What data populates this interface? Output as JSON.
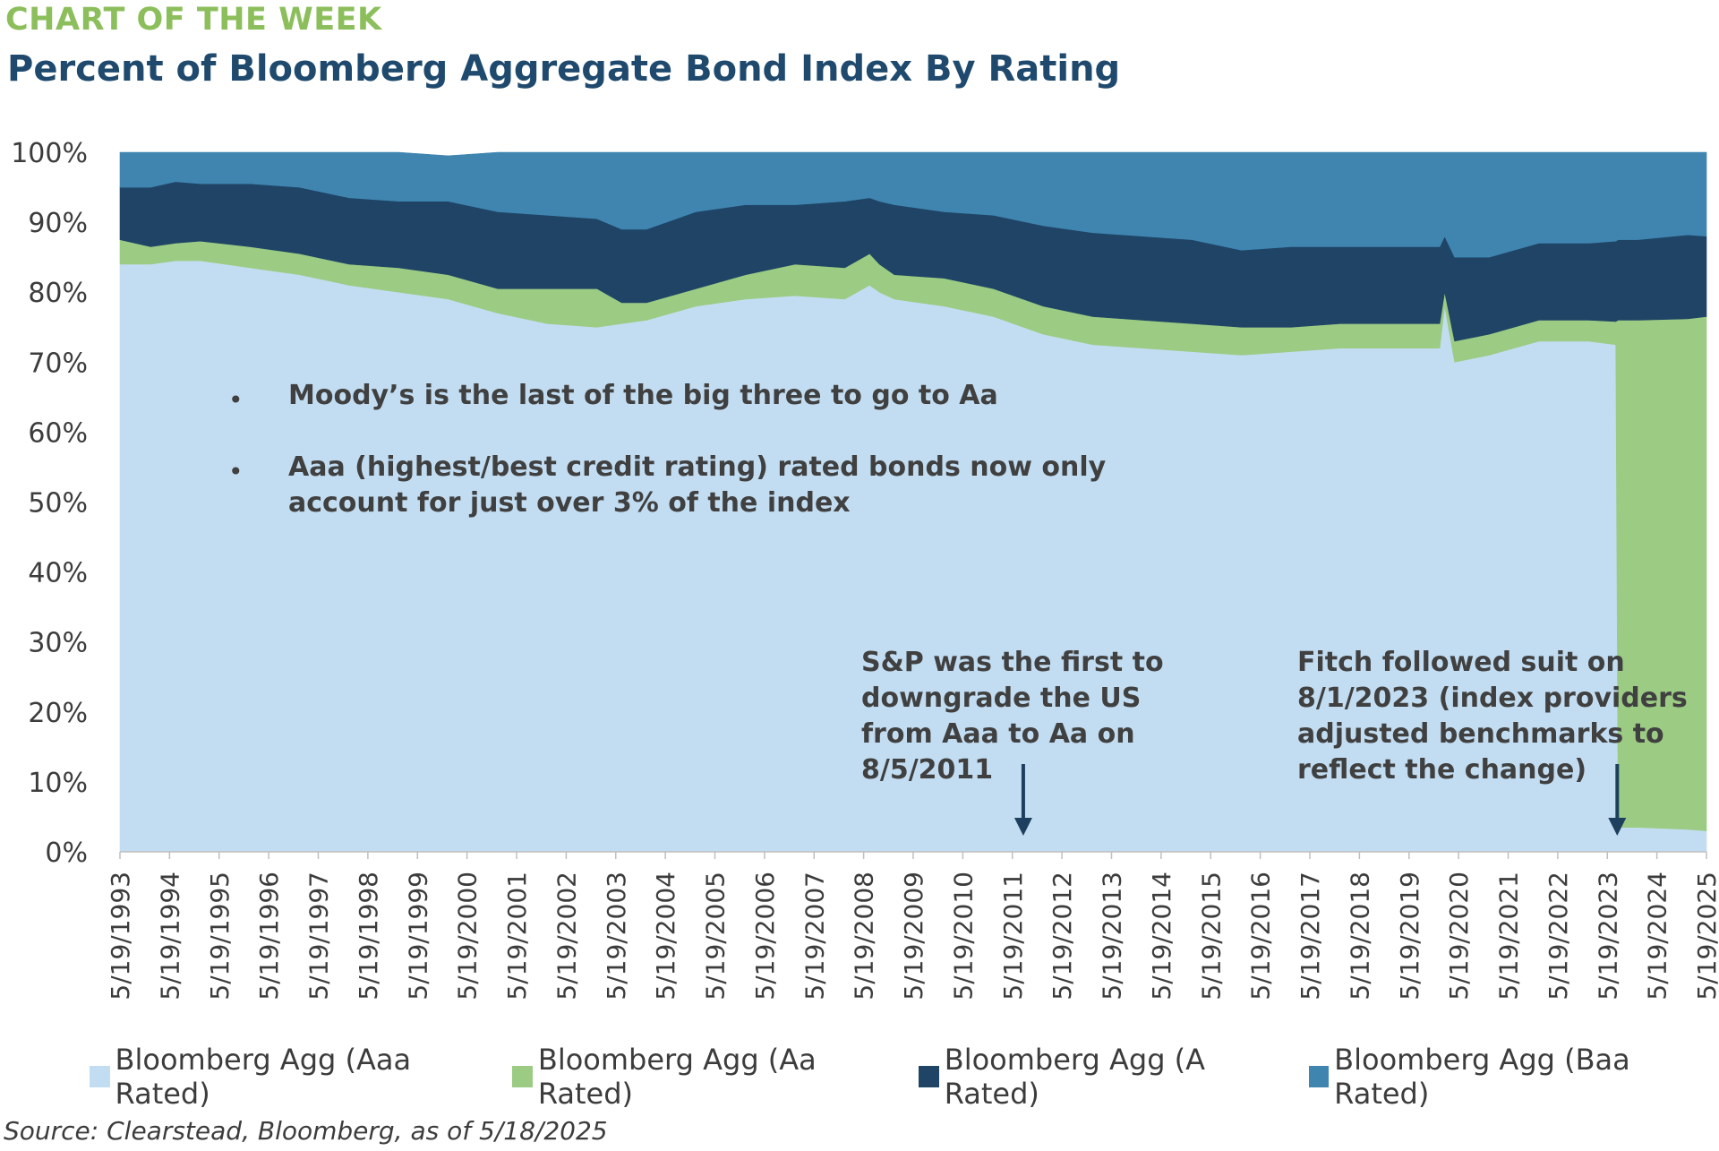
{
  "header": {
    "kicker": "CHART OF THE WEEK",
    "title": "Percent of Bloomberg Aggregate Bond Index By Rating"
  },
  "notes": {
    "bullet_1": "Moody’s is the last of the big three to go to Aa",
    "bullet_2_line1": "Aaa (highest/best credit rating) rated bonds now only",
    "bullet_2_line2": "account for just over 3% of the index",
    "bullet_char": "•",
    "sp_lines": [
      "S&P was the first to",
      "downgrade the US",
      "from Aaa to Aa on",
      "8/5/2011"
    ],
    "fitch_lines": [
      "Fitch followed suit on",
      "8/1/2023 (index providers",
      "adjusted benchmarks to",
      "reflect the change)"
    ]
  },
  "source": "Source: Clearstead, Bloomberg, as of 5/18/2025",
  "colors": {
    "aaa": "#c2ddf2",
    "aa": "#9ccb84",
    "a": "#1f4466",
    "baa": "#3f85b0",
    "arrow": "#1f3f5e"
  },
  "chart_data": {
    "type": "area",
    "stacked": true,
    "y_unit": "%",
    "ylim": [
      0,
      100
    ],
    "y_ticks": [
      "0%",
      "10%",
      "20%",
      "30%",
      "40%",
      "50%",
      "60%",
      "70%",
      "80%",
      "90%",
      "100%"
    ],
    "x_range": [
      1993.38,
      2025.38
    ],
    "x_tick_labels": [
      "5/19/1993",
      "5/19/1994",
      "5/19/1995",
      "5/19/1996",
      "5/19/1997",
      "5/19/1998",
      "5/19/1999",
      "5/19/2000",
      "5/19/2001",
      "5/19/2002",
      "5/19/2003",
      "5/19/2004",
      "5/19/2005",
      "5/19/2006",
      "5/19/2007",
      "5/19/2008",
      "5/19/2009",
      "5/19/2010",
      "5/19/2011",
      "5/19/2012",
      "5/19/2013",
      "5/19/2014",
      "5/19/2015",
      "5/19/2016",
      "5/19/2017",
      "5/19/2018",
      "5/19/2019",
      "5/19/2020",
      "5/19/2021",
      "5/19/2022",
      "5/19/2023",
      "5/19/2024",
      "5/19/2025"
    ],
    "x": [
      1993.38,
      1994.0,
      1994.5,
      1995.0,
      1996.0,
      1997.0,
      1998.0,
      1999.0,
      2000.0,
      2001.0,
      2002.0,
      2003.0,
      2003.5,
      2004.0,
      2005.0,
      2006.0,
      2007.0,
      2008.0,
      2008.5,
      2008.7,
      2009.0,
      2010.0,
      2011.0,
      2012.0,
      2013.0,
      2014.0,
      2015.0,
      2016.0,
      2017.0,
      2018.0,
      2019.0,
      2020.0,
      2020.1,
      2020.3,
      2021.0,
      2022.0,
      2023.0,
      2023.55,
      2023.6,
      2024.0,
      2025.0,
      2025.38
    ],
    "series": [
      {
        "name": "Bloomberg Agg (Aaa Rated)",
        "values": [
          84,
          84,
          84.5,
          84.5,
          83.5,
          82.5,
          81,
          80,
          79,
          77,
          75.5,
          75,
          75.5,
          76,
          78,
          79,
          79.5,
          79,
          81,
          80,
          79,
          78,
          76.5,
          74,
          72.5,
          72,
          71.5,
          71,
          71.5,
          72,
          72,
          72,
          78,
          70,
          71,
          73,
          73,
          72.5,
          3.5,
          3.5,
          3.2,
          3
        ]
      },
      {
        "name": "Bloomberg Agg (Aa Rated)",
        "values": [
          3.5,
          2.5,
          2.5,
          2.8,
          3,
          3,
          3,
          3.5,
          3.5,
          3.5,
          5,
          5.5,
          3,
          2.5,
          2.5,
          3.5,
          4.5,
          4.5,
          4.5,
          4,
          3.5,
          4,
          4,
          4,
          4,
          4,
          4,
          4,
          3.5,
          3.5,
          3.5,
          3.5,
          2,
          3,
          3,
          3,
          3,
          3.3,
          72.5,
          72.5,
          73,
          73.5
        ]
      },
      {
        "name": "Bloomberg Agg (A Rated)",
        "values": [
          7.5,
          8.5,
          8.8,
          8.2,
          9,
          9.5,
          9.5,
          9.5,
          10.5,
          11,
          10.5,
          10,
          10.5,
          10.5,
          11,
          10,
          8.5,
          9.5,
          8,
          9,
          10,
          9.5,
          10.5,
          11.5,
          12,
          12,
          12,
          11,
          11.5,
          11,
          11,
          11,
          8,
          12,
          11,
          11,
          11,
          11.5,
          11.5,
          11.5,
          12,
          11.5
        ]
      },
      {
        "name": "Bloomberg Agg (Baa Rated)",
        "values": [
          5,
          5,
          4.2,
          4.5,
          4.5,
          5,
          6.5,
          7,
          6.5,
          8.5,
          9,
          9.5,
          11,
          11,
          8.5,
          7.5,
          7.5,
          7,
          6.5,
          7,
          7.5,
          8.5,
          9,
          10.5,
          11.5,
          12,
          12.5,
          14,
          13.5,
          13.5,
          13.5,
          13.5,
          12,
          15,
          15,
          13,
          13,
          12.7,
          12.5,
          12.5,
          11.8,
          12
        ]
      }
    ],
    "legend_position": "bottom"
  }
}
